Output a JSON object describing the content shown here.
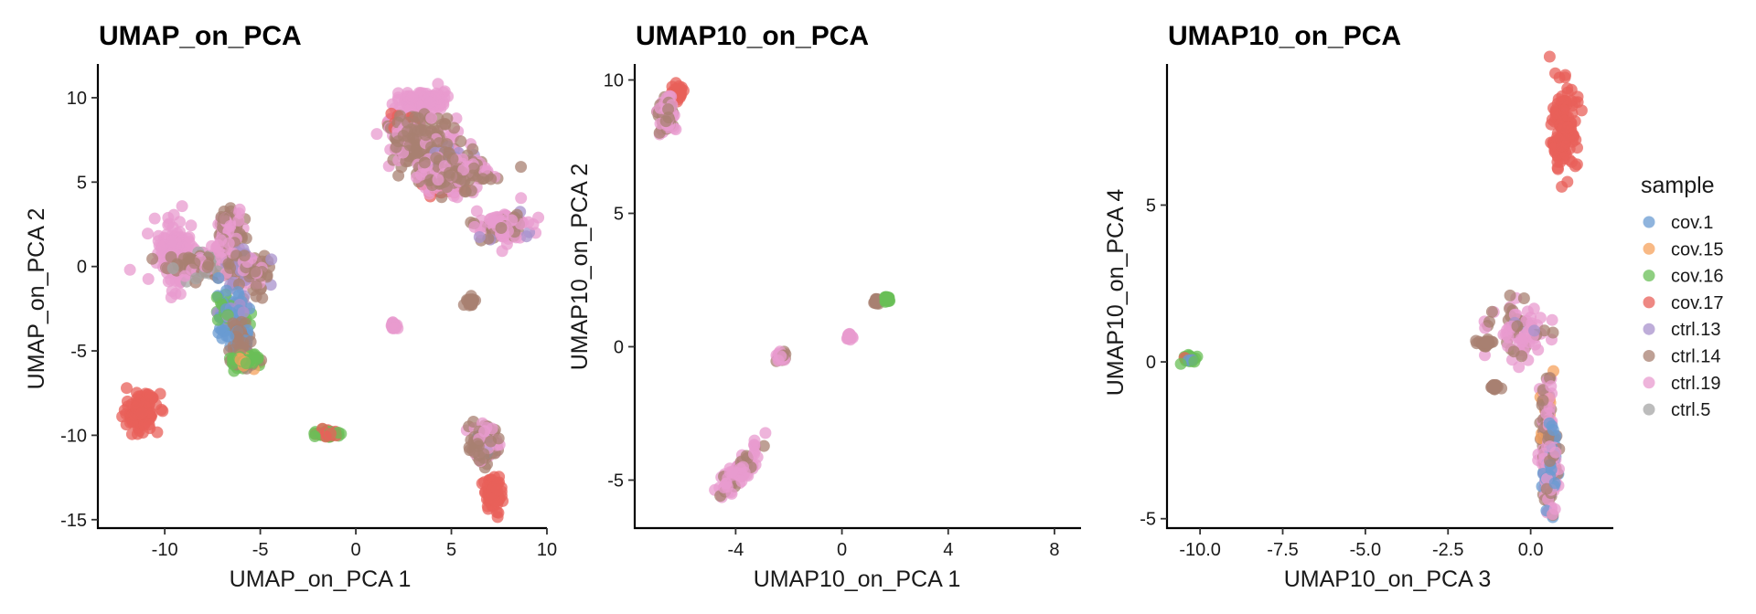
{
  "chart_data": [
    {
      "type": "scatter",
      "title": "UMAP_on_PCA",
      "xlabel": "UMAP_on_PCA 1",
      "ylabel": "UMAP_on_PCA 2",
      "xlim": [
        -13.5,
        10
      ],
      "ylim": [
        -15.5,
        12
      ],
      "xticks": [
        -10,
        -5,
        0,
        5,
        10
      ],
      "yticks": [
        10,
        5,
        0,
        -5,
        -10,
        -15
      ],
      "xtick_labels": [
        "-10",
        "-5",
        "0",
        "5",
        "10"
      ],
      "ytick_labels": [
        "10",
        "5",
        "0",
        "-5",
        "-10",
        "-15"
      ],
      "clusters": [
        {
          "x": -11.3,
          "y": -8.6,
          "sx": 0.45,
          "sy": 0.55,
          "mix": [
            [
              3,
              1
            ]
          ]
        },
        {
          "x": -9.5,
          "y": 0.8,
          "sx": 0.4,
          "sy": 1.0,
          "mix": [
            [
              6,
              1
            ]
          ]
        },
        {
          "x": -7.8,
          "y": 0.1,
          "sx": 1.0,
          "sy": 0.35,
          "mix": [
            [
              5,
              0.6
            ],
            [
              6,
              0.25
            ],
            [
              7,
              0.15
            ]
          ]
        },
        {
          "x": -6.7,
          "y": 1.9,
          "sx": 0.35,
          "sy": 0.8,
          "mix": [
            [
              6,
              0.6
            ],
            [
              5,
              0.4
            ]
          ]
        },
        {
          "x": -5.7,
          "y": -0.2,
          "sx": 0.6,
          "sy": 0.6,
          "mix": [
            [
              5,
              0.5
            ],
            [
              6,
              0.3
            ],
            [
              4,
              0.2
            ]
          ]
        },
        {
          "x": -6.5,
          "y": -2.8,
          "sx": 0.45,
          "sy": 0.6,
          "mix": [
            [
              0,
              0.6
            ],
            [
              2,
              0.2
            ],
            [
              4,
              0.2
            ]
          ]
        },
        {
          "x": -6.0,
          "y": -4.6,
          "sx": 0.2,
          "sy": 0.5,
          "mix": [
            [
              5,
              0.6
            ],
            [
              0,
              0.4
            ]
          ]
        },
        {
          "x": -5.8,
          "y": -5.6,
          "sx": 0.45,
          "sy": 0.2,
          "mix": [
            [
              2,
              0.7
            ],
            [
              1,
              0.2
            ],
            [
              5,
              0.1
            ]
          ]
        },
        {
          "x": -1.4,
          "y": -9.9,
          "sx": 0.3,
          "sy": 0.12,
          "mix": [
            [
              2,
              0.6
            ],
            [
              3,
              0.4
            ]
          ]
        },
        {
          "x": 3.5,
          "y": 9.8,
          "sx": 0.6,
          "sy": 0.3,
          "mix": [
            [
              6,
              1
            ]
          ]
        },
        {
          "x": 2.6,
          "y": 8.2,
          "sx": 0.5,
          "sy": 0.3,
          "mix": [
            [
              3,
              0.4
            ],
            [
              5,
              0.3
            ],
            [
              6,
              0.3
            ]
          ]
        },
        {
          "x": 3.5,
          "y": 7.2,
          "sx": 0.8,
          "sy": 0.9,
          "mix": [
            [
              5,
              0.7
            ],
            [
              6,
              0.3
            ]
          ]
        },
        {
          "x": 5.0,
          "y": 6.0,
          "sx": 0.5,
          "sy": 0.5,
          "mix": [
            [
              4,
              0.6
            ],
            [
              5,
              0.4
            ]
          ]
        },
        {
          "x": 4.4,
          "y": 4.8,
          "sx": 0.5,
          "sy": 0.3,
          "mix": [
            [
              3,
              0.6
            ],
            [
              6,
              0.4
            ]
          ]
        },
        {
          "x": 5.2,
          "y": 5.5,
          "sx": 0.9,
          "sy": 0.5,
          "mix": [
            [
              5,
              0.5
            ],
            [
              6,
              0.5
            ]
          ]
        },
        {
          "x": 7.8,
          "y": 2.4,
          "sx": 0.7,
          "sy": 0.5,
          "mix": [
            [
              6,
              0.6
            ],
            [
              5,
              0.3
            ],
            [
              4,
              0.1
            ]
          ]
        },
        {
          "x": 6.0,
          "y": -2.1,
          "sx": 0.1,
          "sy": 0.1,
          "mix": [
            [
              5,
              1
            ]
          ]
        },
        {
          "x": 2.0,
          "y": -3.5,
          "sx": 0.08,
          "sy": 0.08,
          "mix": [
            [
              6,
              1
            ]
          ]
        },
        {
          "x": 6.7,
          "y": -10.6,
          "sx": 0.4,
          "sy": 0.6,
          "mix": [
            [
              5,
              0.6
            ],
            [
              6,
              0.3
            ],
            [
              0,
              0.1
            ]
          ]
        },
        {
          "x": 7.2,
          "y": -13.3,
          "sx": 0.2,
          "sy": 0.5,
          "mix": [
            [
              3,
              1
            ]
          ]
        }
      ]
    },
    {
      "type": "scatter",
      "title": "UMAP10_on_PCA",
      "xlabel": "UMAP10_on_PCA 1",
      "ylabel": "UMAP10_on_PCA 2",
      "xlim": [
        -7.8,
        9
      ],
      "ylim": [
        -6.8,
        10.6
      ],
      "xticks": [
        -4,
        0,
        4,
        8
      ],
      "yticks": [
        10,
        5,
        0,
        -5
      ],
      "xtick_labels": [
        "-4",
        "0",
        "4",
        "8"
      ],
      "ytick_labels": [
        "10",
        "5",
        "0",
        "-5"
      ],
      "clusters": [
        {
          "x": -6.2,
          "y": 9.5,
          "sx": 0.1,
          "sy": 0.15,
          "mix": [
            [
              3,
              1
            ]
          ]
        },
        {
          "x": -6.6,
          "y": 8.7,
          "sx": 0.15,
          "sy": 0.4,
          "mix": [
            [
              6,
              0.6
            ],
            [
              5,
              0.4
            ]
          ]
        },
        {
          "x": 1.3,
          "y": 1.7,
          "sx": 0.05,
          "sy": 0.05,
          "mix": [
            [
              5,
              1
            ]
          ]
        },
        {
          "x": 1.7,
          "y": 1.8,
          "sx": 0.05,
          "sy": 0.05,
          "mix": [
            [
              2,
              1
            ]
          ]
        },
        {
          "x": 0.3,
          "y": 0.35,
          "sx": 0.05,
          "sy": 0.05,
          "mix": [
            [
              6,
              1
            ]
          ]
        },
        {
          "x": -2.3,
          "y": -0.4,
          "sx": 0.1,
          "sy": 0.08,
          "mix": [
            [
              5,
              0.5
            ],
            [
              6,
              0.5
            ]
          ]
        },
        {
          "x": -3.9,
          "y": -4.7,
          "sx": 0.45,
          "sy": 0.5,
          "mix": [
            [
              6,
              0.7
            ],
            [
              5,
              0.3
            ]
          ],
          "rho": 0.85
        }
      ]
    },
    {
      "type": "scatter",
      "title": "UMAP10_on_PCA",
      "xlabel": "UMAP10_on_PCA 3",
      "ylabel": "UMAP10_on_PCA 4",
      "xlim": [
        -11,
        2.5
      ],
      "ylim": [
        -5.3,
        9.5
      ],
      "xticks": [
        -10,
        -7.5,
        -5,
        -2.5,
        0
      ],
      "yticks": [
        5,
        0,
        -5
      ],
      "xtick_labels": [
        "-10.0",
        "-7.5",
        "-5.0",
        "-2.5",
        "0.0"
      ],
      "ytick_labels": [
        "5",
        "0",
        "-5"
      ],
      "clusters": [
        {
          "x": 1.0,
          "y": 7.5,
          "sx": 0.18,
          "sy": 0.7,
          "mix": [
            [
              3,
              1
            ]
          ]
        },
        {
          "x": -0.3,
          "y": 1.0,
          "sx": 0.45,
          "sy": 0.4,
          "mix": [
            [
              6,
              0.7
            ],
            [
              5,
              0.2
            ],
            [
              4,
              0.1
            ]
          ]
        },
        {
          "x": -1.4,
          "y": 0.6,
          "sx": 0.1,
          "sy": 0.05,
          "mix": [
            [
              5,
              1
            ]
          ]
        },
        {
          "x": -1.1,
          "y": -0.8,
          "sx": 0.05,
          "sy": 0.05,
          "mix": [
            [
              5,
              1
            ]
          ]
        },
        {
          "x": 0.5,
          "y": -2.3,
          "sx": 0.1,
          "sy": 0.9,
          "mix": [
            [
              5,
              0.5
            ],
            [
              1,
              0.2
            ],
            [
              6,
              0.3
            ]
          ]
        },
        {
          "x": 0.6,
          "y": -3.5,
          "sx": 0.12,
          "sy": 0.6,
          "mix": [
            [
              6,
              0.5
            ],
            [
              0,
              0.3
            ],
            [
              5,
              0.2
            ]
          ]
        },
        {
          "x": -10.3,
          "y": 0.1,
          "sx": 0.12,
          "sy": 0.08,
          "mix": [
            [
              2,
              0.5
            ],
            [
              0,
              0.3
            ],
            [
              3,
              0.2
            ]
          ]
        }
      ]
    }
  ],
  "legend": {
    "title": "sample",
    "items": [
      {
        "label": "cov.1",
        "color": "#6A9BD2"
      },
      {
        "label": "cov.15",
        "color": "#F5A25C"
      },
      {
        "label": "cov.16",
        "color": "#6ABF57"
      },
      {
        "label": "cov.17",
        "color": "#E8605A"
      },
      {
        "label": "ctrl.13",
        "color": "#A892CC"
      },
      {
        "label": "ctrl.14",
        "color": "#A88072"
      },
      {
        "label": "ctrl.19",
        "color": "#E89BCF"
      },
      {
        "label": "ctrl.5",
        "color": "#A6A6A6"
      }
    ]
  }
}
